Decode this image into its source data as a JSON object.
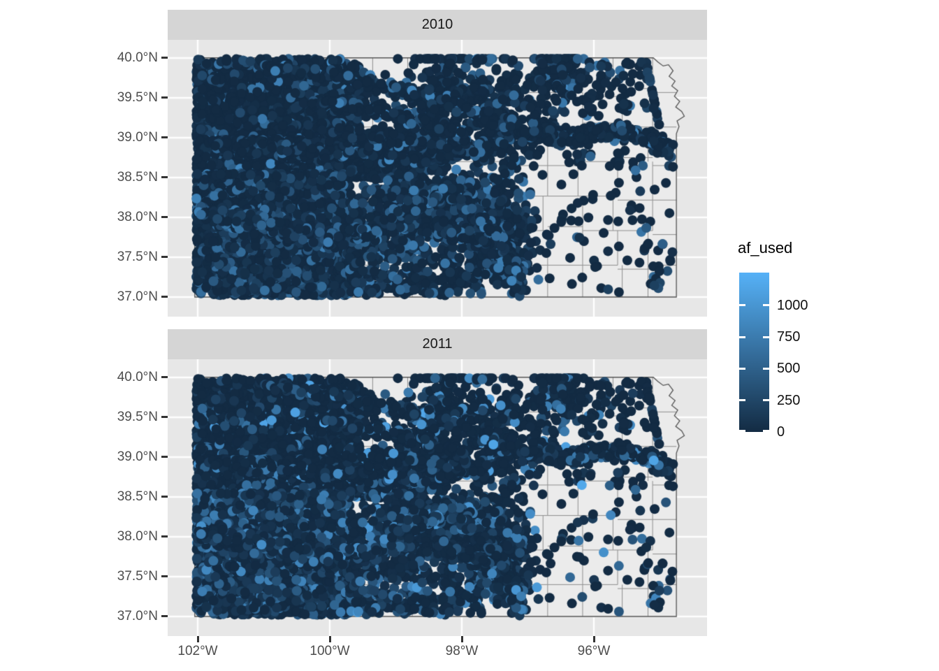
{
  "chart_data": {
    "type": "scatter",
    "subtype": "faceted-point-map",
    "title": "",
    "region_hint": "Kansas state with county boundaries",
    "facets": [
      {
        "label": "2010",
        "seed": 20100,
        "value_boost": 1.0
      },
      {
        "label": "2011",
        "seed": 20110,
        "value_boost": 1.3
      }
    ],
    "x_axis": {
      "tick_labels": [
        "102°W",
        "100°W",
        "98°W",
        "96°W"
      ],
      "tick_lons_west": [
        102,
        100,
        98,
        96
      ]
    },
    "y_axis": {
      "tick_labels": [
        "40.0°N",
        "39.5°N",
        "39.0°N",
        "38.5°N",
        "38.0°N",
        "37.5°N",
        "37.0°N"
      ],
      "tick_lats": [
        40,
        39.5,
        39,
        38.5,
        38,
        37.5,
        37
      ]
    },
    "legend": {
      "title": "af_used",
      "tick_labels": [
        "0",
        "250",
        "500",
        "750",
        "1000"
      ],
      "tick_values": [
        0,
        250,
        500,
        750,
        1000
      ],
      "bar_max_value": 1257,
      "low_color": "#132B43",
      "high_color": "#56B1F7"
    },
    "style": {
      "panel_bg": "#E7E7E7",
      "strip_bg": "#D5D5D5",
      "state_fill": "#EBEBEB",
      "county_line": "#8E8E8E",
      "state_line": "#545454",
      "graticule": "#FFFFFF",
      "axis_text": "#4D4D4D",
      "tick_color": "#333333"
    },
    "map": {
      "state_outline": [
        [
          102.045,
          40.002
        ],
        [
          95.1,
          40.002
        ],
        [
          95.03,
          39.95
        ],
        [
          94.95,
          39.9
        ],
        [
          94.87,
          39.915
        ],
        [
          94.8,
          39.84
        ],
        [
          94.86,
          39.77
        ],
        [
          94.77,
          39.71
        ],
        [
          94.82,
          39.65
        ],
        [
          94.73,
          39.59
        ],
        [
          94.78,
          39.52
        ],
        [
          94.7,
          39.455
        ],
        [
          94.76,
          39.385
        ],
        [
          94.67,
          39.33
        ],
        [
          94.63,
          39.27
        ],
        [
          94.74,
          39.21
        ],
        [
          94.71,
          39.14
        ],
        [
          94.75,
          39.05
        ],
        [
          94.75,
          37.0
        ],
        [
          102.045,
          37.0
        ]
      ],
      "county_lons": [
        101.47,
        100.94,
        100.41,
        99.88,
        99.35,
        98.82,
        98.29,
        97.76,
        97.23,
        96.7,
        96.17,
        95.64,
        95.11
      ],
      "county_lats": [
        39.567,
        39.134,
        38.7,
        38.267,
        37.834,
        37.4
      ]
    },
    "point_radius_px": 7,
    "point_layers": [
      {
        "id": "nw-dense",
        "kind": "box",
        "lon": [
          99.55,
          102.02
        ],
        "lat": [
          38.95,
          39.93
        ],
        "n": 2300,
        "vpow": 9,
        "vmax": 900
      },
      {
        "id": "nw-top-scatter",
        "kind": "box",
        "lon": [
          99.8,
          102.0
        ],
        "lat": [
          39.9,
          39.99
        ],
        "n": 80,
        "vpow": 9,
        "vmax": 900
      },
      {
        "id": "west-mid-band",
        "kind": "box",
        "lon": [
          99.0,
          102.02
        ],
        "lat": [
          38.5,
          38.98
        ],
        "n": 1000,
        "vpow": 9,
        "vmax": 900
      },
      {
        "id": "sw-dense",
        "kind": "box",
        "lon": [
          99.7,
          102.02
        ],
        "lat": [
          37.02,
          38.55
        ],
        "n": 3000,
        "vpow": 3.4,
        "vmax": 680
      },
      {
        "id": "sc-moderate",
        "kind": "box",
        "lon": [
          97.7,
          99.7
        ],
        "lat": [
          37.02,
          38.4
        ],
        "n": 600,
        "vpow": 5,
        "vmax": 800
      },
      {
        "id": "great-bend-blob",
        "kind": "blob",
        "c": [
          98.75,
          38.3
        ],
        "sd": 0.28,
        "n": 330,
        "vpow": 5,
        "vmax": 800
      },
      {
        "id": "equus-blob",
        "kind": "blob",
        "c": [
          97.65,
          38.1
        ],
        "sd": 0.3,
        "n": 300,
        "vpow": 5,
        "vmax": 800
      },
      {
        "id": "wichita-blob",
        "kind": "blob",
        "c": [
          97.3,
          37.6
        ],
        "sd": 0.22,
        "n": 180,
        "vpow": 5,
        "vmax": 700
      },
      {
        "id": "nc-blob-1",
        "kind": "blob",
        "c": [
          98.1,
          39.6
        ],
        "sd": 0.4,
        "n": 260,
        "vpow": 9,
        "vmax": 900
      },
      {
        "id": "nc-blob-2",
        "kind": "blob",
        "c": [
          97.35,
          39.2
        ],
        "sd": 0.3,
        "n": 170,
        "vpow": 9,
        "vmax": 900
      },
      {
        "id": "ne-blue-blob",
        "kind": "blob",
        "c": [
          96.55,
          39.8
        ],
        "sd": 0.25,
        "n": 110,
        "vpow": 9,
        "vmax": 900
      },
      {
        "id": "arkansas-river",
        "kind": "path",
        "sd": 0.06,
        "n": 650,
        "vpow": 4.2,
        "vmax": 800,
        "pts": [
          [
            102.02,
            38.08
          ],
          [
            101.3,
            37.98
          ],
          [
            100.6,
            37.82
          ],
          [
            100.0,
            37.73
          ],
          [
            99.3,
            37.82
          ],
          [
            98.72,
            38.16
          ],
          [
            98.2,
            38.32
          ],
          [
            97.82,
            38.05
          ],
          [
            97.42,
            37.7
          ],
          [
            97.18,
            37.3
          ],
          [
            97.12,
            37.03
          ]
        ]
      },
      {
        "id": "smoky-hill-river",
        "kind": "path",
        "sd": 0.05,
        "n": 300,
        "vpow": 9,
        "vmax": 900,
        "pts": [
          [
            101.4,
            38.88
          ],
          [
            100.4,
            38.84
          ],
          [
            99.45,
            38.8
          ],
          [
            98.65,
            38.74
          ],
          [
            98.05,
            38.82
          ],
          [
            97.62,
            38.88
          ]
        ]
      },
      {
        "id": "saline-river",
        "kind": "path",
        "sd": 0.05,
        "n": 180,
        "vpow": 9,
        "vmax": 900,
        "pts": [
          [
            100.3,
            39.12
          ],
          [
            99.4,
            39.03
          ],
          [
            98.55,
            38.97
          ],
          [
            98.05,
            38.9
          ]
        ]
      },
      {
        "id": "solomon-river",
        "kind": "path",
        "sd": 0.05,
        "n": 220,
        "vpow": 9,
        "vmax": 900,
        "pts": [
          [
            100.2,
            39.48
          ],
          [
            99.25,
            39.33
          ],
          [
            98.45,
            39.17
          ],
          [
            97.95,
            39.02
          ]
        ]
      },
      {
        "id": "republican-river",
        "kind": "path",
        "sd": 0.05,
        "n": 240,
        "vpow": 9,
        "vmax": 900,
        "pts": [
          [
            100.9,
            39.88
          ],
          [
            99.95,
            39.78
          ],
          [
            99.05,
            39.62
          ],
          [
            98.25,
            39.47
          ],
          [
            97.65,
            39.27
          ],
          [
            97.1,
            39.13
          ]
        ]
      },
      {
        "id": "kansas-river",
        "kind": "path",
        "sd": 0.05,
        "n": 330,
        "vpow": 9,
        "vmax": 900,
        "pts": [
          [
            96.98,
            39.08
          ],
          [
            96.45,
            39.0
          ],
          [
            95.95,
            39.06
          ],
          [
            95.5,
            39.07
          ],
          [
            95.15,
            39.0
          ],
          [
            94.9,
            38.88
          ],
          [
            94.82,
            38.8
          ]
        ]
      },
      {
        "id": "ninnescah-river",
        "kind": "path",
        "sd": 0.05,
        "n": 110,
        "vpow": 5,
        "vmax": 700,
        "pts": [
          [
            98.35,
            37.88
          ],
          [
            97.95,
            37.78
          ],
          [
            97.6,
            37.62
          ]
        ]
      },
      {
        "id": "east-scatter",
        "kind": "box",
        "lon": [
          94.8,
          97.6
        ],
        "lat": [
          37.05,
          39.95
        ],
        "n": 150,
        "vpow": 9,
        "vmax": 900
      },
      {
        "id": "ne-scatter",
        "kind": "box",
        "lon": [
          95.0,
          96.9
        ],
        "lat": [
          39.3,
          39.95
        ],
        "n": 70,
        "vpow": 9,
        "vmax": 900
      },
      {
        "id": "se-scatter",
        "kind": "box",
        "lon": [
          94.8,
          95.3
        ],
        "lat": [
          37.05,
          37.95
        ],
        "n": 16,
        "vpow": 9,
        "vmax": 900
      },
      {
        "id": "highlight-point",
        "kind": "fixed",
        "points": {
          "2010": [
            [
              95.37,
              38.59,
              650
            ]
          ],
          "2011": [
            [
              95.37,
              38.59,
              560
            ]
          ]
        }
      }
    ]
  }
}
